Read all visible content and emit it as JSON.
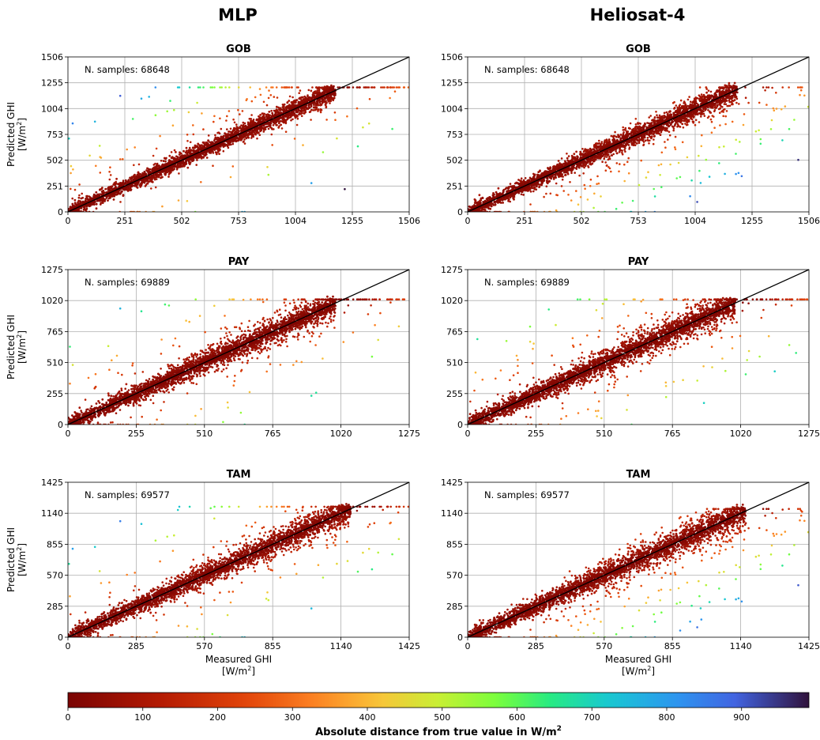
{
  "columns": [
    "MLP",
    "Heliosat-4"
  ],
  "colorbar": {
    "ticks": [
      "0",
      "100",
      "200",
      "300",
      "400",
      "500",
      "600",
      "700",
      "800",
      "900"
    ],
    "tick_values": [
      0,
      100,
      200,
      300,
      400,
      500,
      600,
      700,
      800,
      900
    ],
    "range": [
      0,
      990
    ],
    "label": "Absolute distance from true value in W/m",
    "label_superscript": "2",
    "colormap": "turbo (reversed: dark red = 0, dark blue = large)"
  },
  "chart_data": [
    {
      "type": "scatter",
      "model": "MLP",
      "title": "GOB",
      "annotation": "N. samples: 68648",
      "n_samples": 68648,
      "ylabel": "Predicted GHI",
      "ylabel_unit": "[W/m",
      "xlabel": "",
      "xticks": [
        "0",
        "251",
        "502",
        "753",
        "1004",
        "1255",
        "1506"
      ],
      "yticks": [
        "0",
        "251",
        "502",
        "753",
        "1004",
        "1255",
        "1506"
      ],
      "xlim": [
        0,
        1506
      ],
      "ylim": [
        0,
        1506
      ],
      "grid": true,
      "identity_line": true,
      "point_cloud": {
        "x_max": 1180,
        "y_max": 1170,
        "spread": 0.14,
        "outlier_bias": "above"
      }
    },
    {
      "type": "scatter",
      "model": "Heliosat-4",
      "title": "GOB",
      "annotation": "N. samples: 68648",
      "n_samples": 68648,
      "ylabel": "",
      "ylabel_unit": "",
      "xlabel": "",
      "xticks": [
        "0",
        "251",
        "502",
        "753",
        "1004",
        "1255",
        "1506"
      ],
      "yticks": [
        "0",
        "251",
        "502",
        "753",
        "1004",
        "1255",
        "1506"
      ],
      "xlim": [
        0,
        1506
      ],
      "ylim": [
        0,
        1506
      ],
      "grid": true,
      "identity_line": true,
      "point_cloud": {
        "x_max": 1190,
        "y_max": 1170,
        "spread": 0.17,
        "outlier_bias": "below"
      }
    },
    {
      "type": "scatter",
      "model": "MLP",
      "title": "PAY",
      "annotation": "N. samples: 69889",
      "n_samples": 69889,
      "ylabel": "Predicted GHI",
      "ylabel_unit": "[W/m",
      "xlabel": "",
      "xticks": [
        "0",
        "255",
        "510",
        "765",
        "1020",
        "1275"
      ],
      "yticks": [
        "0",
        "255",
        "510",
        "765",
        "1020",
        "1275"
      ],
      "xlim": [
        0,
        1275
      ],
      "ylim": [
        0,
        1275
      ],
      "grid": true,
      "identity_line": true,
      "point_cloud": {
        "x_max": 1000,
        "y_max": 990,
        "spread": 0.22,
        "outlier_bias": "both"
      }
    },
    {
      "type": "scatter",
      "model": "Heliosat-4",
      "title": "PAY",
      "annotation": "N. samples: 69889",
      "n_samples": 69889,
      "ylabel": "",
      "ylabel_unit": "",
      "xlabel": "",
      "xticks": [
        "0",
        "255",
        "510",
        "765",
        "1020",
        "1275"
      ],
      "yticks": [
        "0",
        "255",
        "510",
        "765",
        "1020",
        "1275"
      ],
      "xlim": [
        0,
        1275
      ],
      "ylim": [
        0,
        1275
      ],
      "grid": true,
      "identity_line": true,
      "point_cloud": {
        "x_max": 1000,
        "y_max": 990,
        "spread": 0.24,
        "outlier_bias": "both"
      }
    },
    {
      "type": "scatter",
      "model": "MLP",
      "title": "TAM",
      "annotation": "N. samples: 69577",
      "n_samples": 69577,
      "ylabel": "Predicted GHI",
      "ylabel_unit": "[W/m",
      "xlabel": "Measured GHI",
      "xlabel_unit": "[W/m",
      "xticks": [
        "0",
        "285",
        "570",
        "855",
        "1140",
        "1425"
      ],
      "yticks": [
        "0",
        "285",
        "570",
        "855",
        "1140",
        "1425"
      ],
      "xlim": [
        0,
        1425
      ],
      "ylim": [
        0,
        1425
      ],
      "grid": true,
      "identity_line": true,
      "point_cloud": {
        "x_max": 1180,
        "y_max": 1160,
        "spread": 0.22,
        "outlier_bias": "both"
      }
    },
    {
      "type": "scatter",
      "model": "Heliosat-4",
      "title": "TAM",
      "annotation": "N. samples: 69577",
      "n_samples": 69577,
      "ylabel": "",
      "ylabel_unit": "",
      "xlabel": "Measured GHI",
      "xlabel_unit": "[W/m",
      "xticks": [
        "0",
        "285",
        "570",
        "855",
        "1140",
        "1425"
      ],
      "yticks": [
        "0",
        "285",
        "570",
        "855",
        "1140",
        "1425"
      ],
      "xlim": [
        0,
        1425
      ],
      "ylim": [
        0,
        1425
      ],
      "grid": true,
      "identity_line": true,
      "point_cloud": {
        "x_max": 1160,
        "y_max": 1140,
        "spread": 0.25,
        "outlier_bias": "below"
      }
    }
  ]
}
